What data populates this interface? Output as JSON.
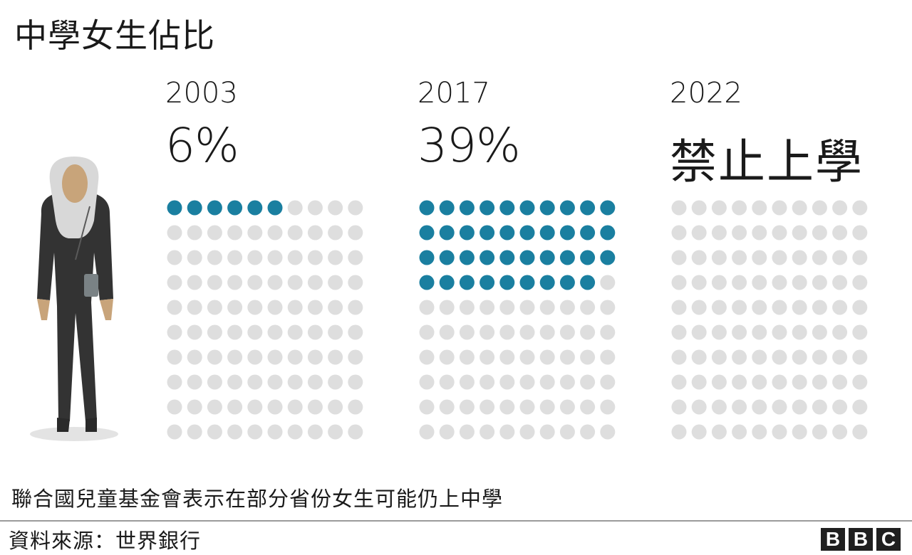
{
  "title": "中學女生佔比",
  "colors": {
    "filled": "#1a7fa0",
    "empty": "#dedede",
    "text": "#1a1a1a"
  },
  "chart_data": {
    "type": "waffle",
    "title": "中學女生佔比",
    "grid": {
      "rows": 10,
      "cols": 10,
      "total": 100
    },
    "panels": [
      {
        "year": "2003",
        "label": "6%",
        "value": 6
      },
      {
        "year": "2017",
        "label": "39%",
        "value": 39
      },
      {
        "year": "2022",
        "label": "禁止上學",
        "value": 0
      }
    ]
  },
  "note": "聯合國兒童基金會表示在部分省份女生可能仍上中學",
  "source": "資料來源：世界銀行",
  "logo": {
    "letters": [
      "B",
      "B",
      "C"
    ],
    "icon": "bbc-logo"
  },
  "illustration": {
    "icon": "woman-in-headscarf-illustration"
  }
}
